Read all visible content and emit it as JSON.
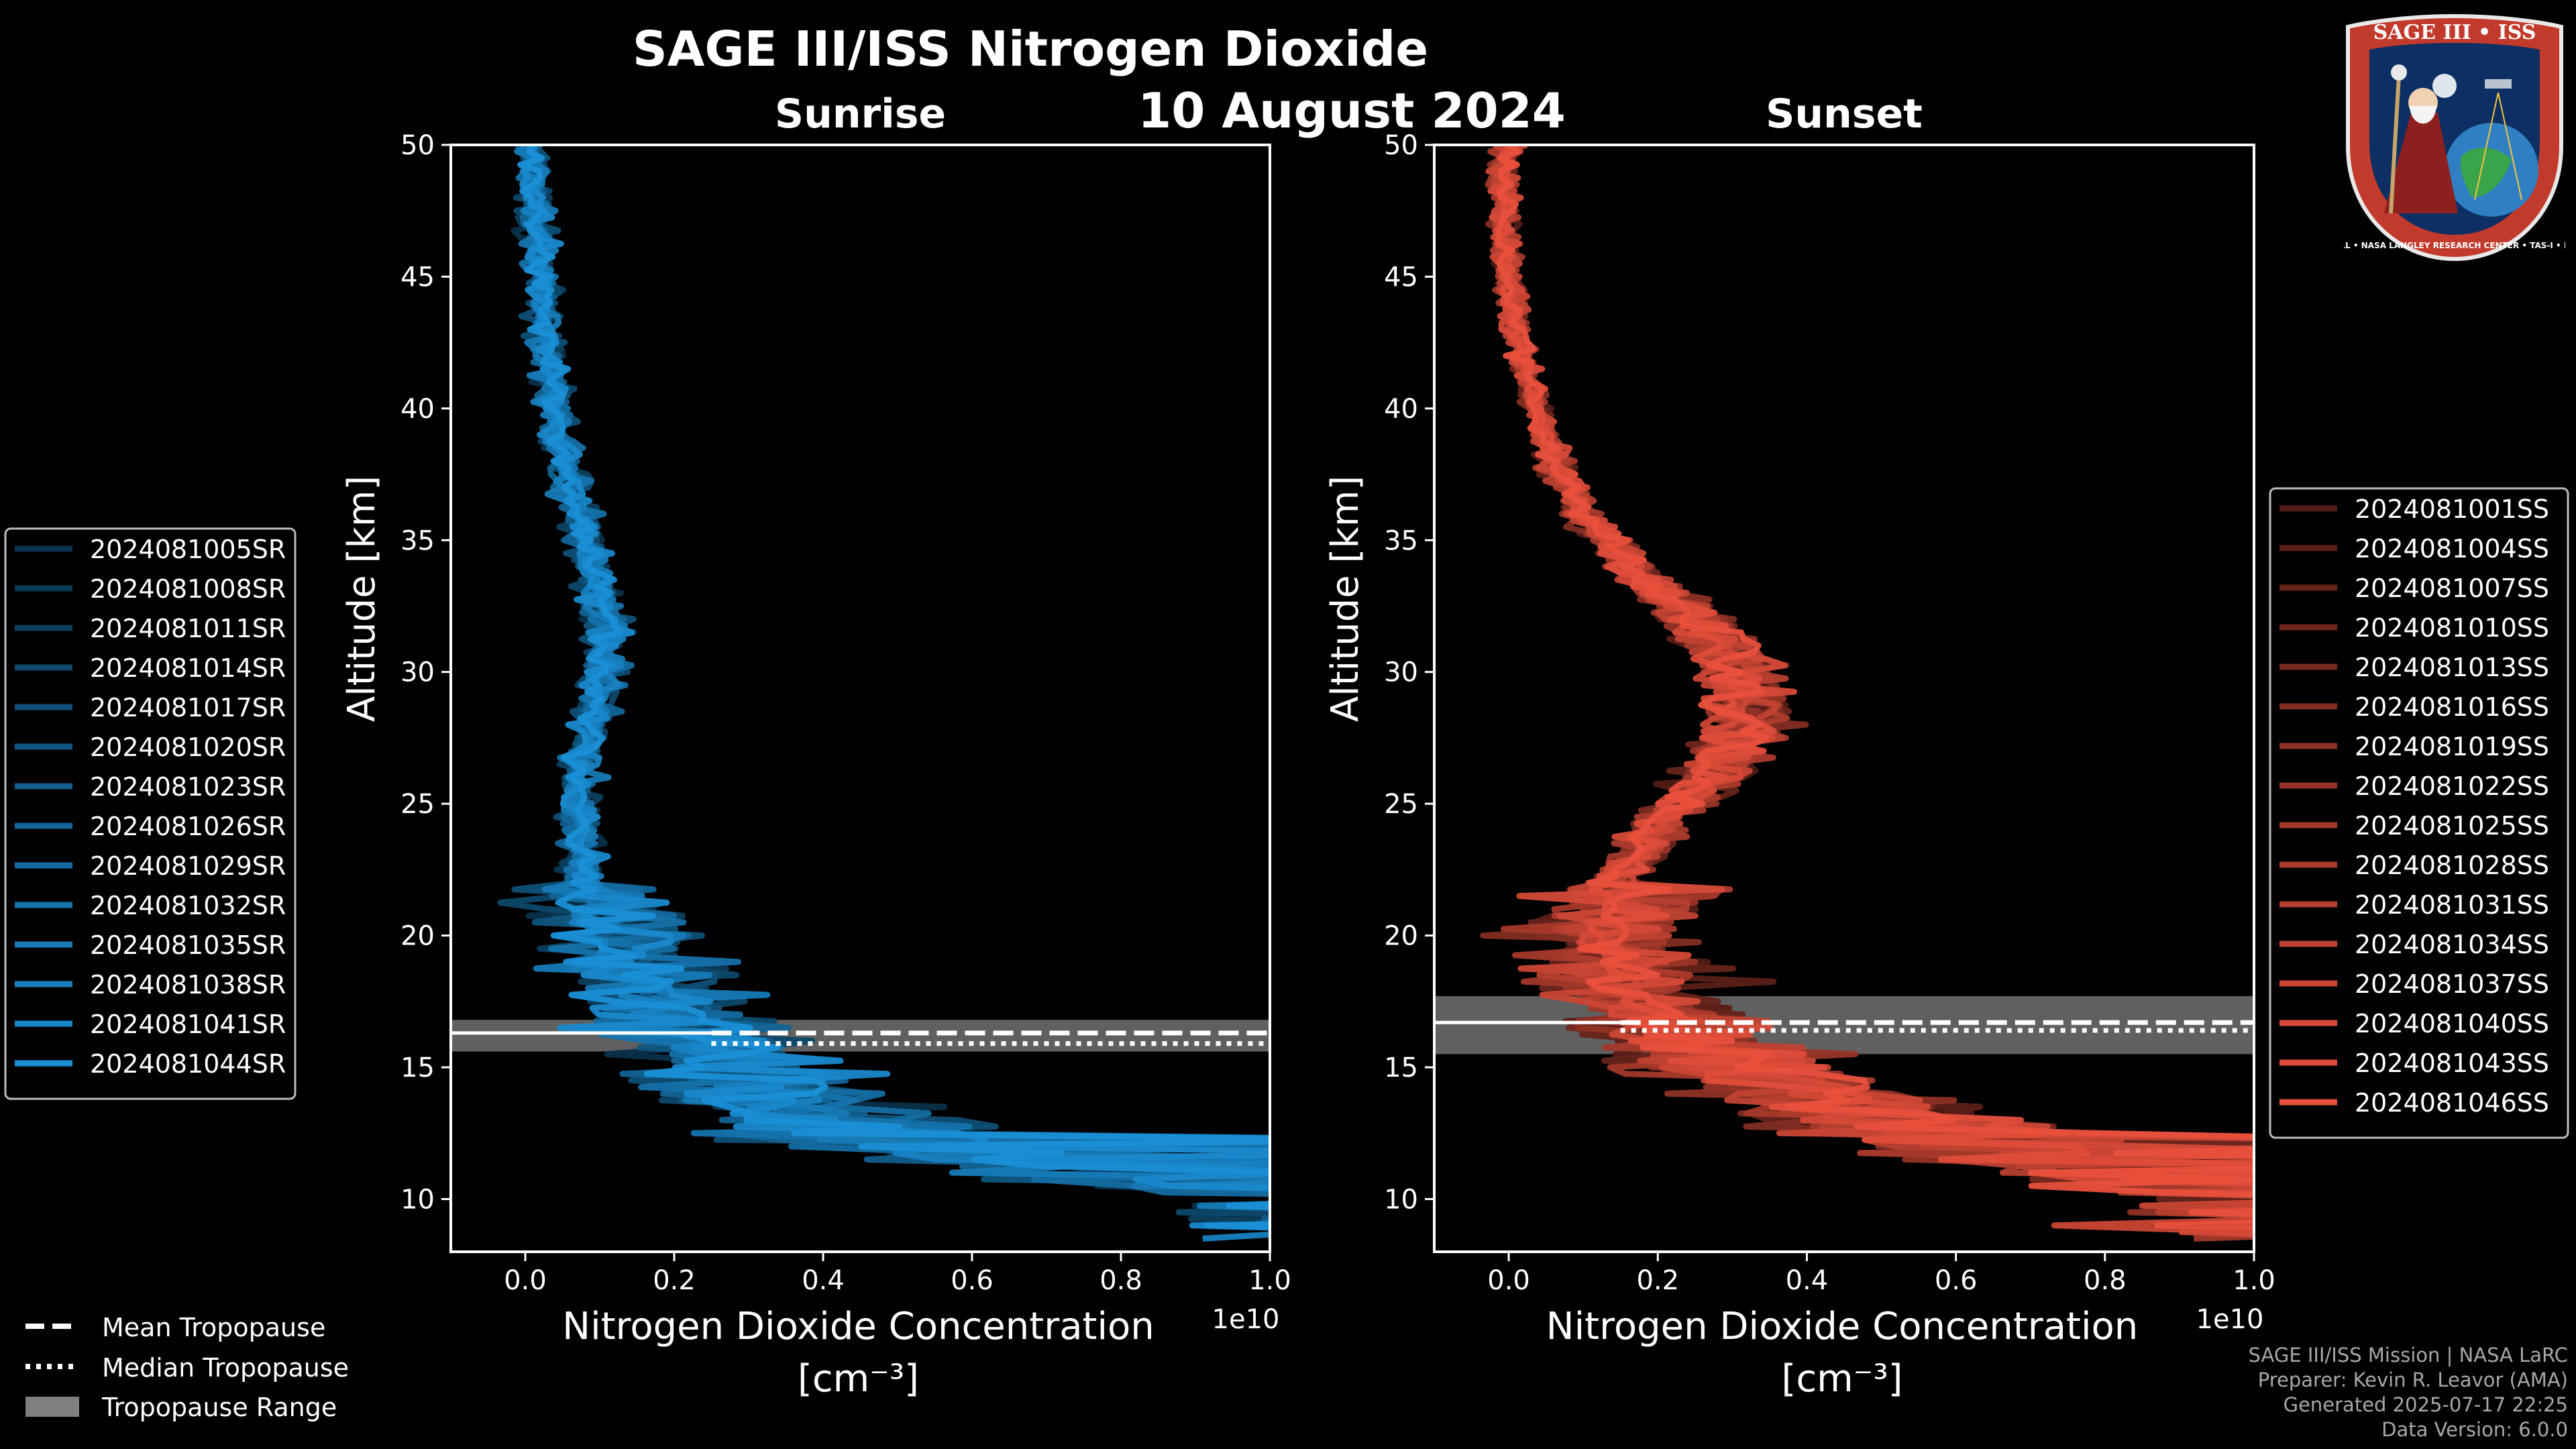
{
  "chart_data": {
    "title": "SAGE III/ISS Nitrogen Dioxide",
    "date": "10 August 2024",
    "panels": [
      {
        "type": "line",
        "subtitle": "Sunrise",
        "xlabel_line1": "Nitrogen Dioxide Concentration",
        "xlabel_line2": "[cm⁻³]",
        "ylabel": "Altitude [km]",
        "x_scale_label": "1e10",
        "xlim": [
          -0.1,
          1.0
        ],
        "ylim": [
          8,
          50
        ],
        "xticks": [
          0.0,
          0.2,
          0.4,
          0.6,
          0.8,
          1.0
        ],
        "xtick_labels": [
          "0.0",
          "0.2",
          "0.4",
          "0.6",
          "0.8",
          "1.0"
        ],
        "yticks": [
          10,
          15,
          20,
          25,
          30,
          35,
          40,
          45,
          50
        ],
        "mean_tropopause_km": 16.3,
        "median_tropopause_km": 15.9,
        "tropopause_range_km": [
          15.6,
          16.8
        ],
        "tropopause_line_x_start": 0.25,
        "legend_position": "left",
        "series_color": "#1a8fd6",
        "series": [
          {
            "name": "2024081005SR"
          },
          {
            "name": "2024081008SR"
          },
          {
            "name": "2024081011SR"
          },
          {
            "name": "2024081014SR"
          },
          {
            "name": "2024081017SR"
          },
          {
            "name": "2024081020SR"
          },
          {
            "name": "2024081023SR"
          },
          {
            "name": "2024081026SR"
          },
          {
            "name": "2024081029SR"
          },
          {
            "name": "2024081032SR"
          },
          {
            "name": "2024081035SR"
          },
          {
            "name": "2024081038SR"
          },
          {
            "name": "2024081041SR"
          },
          {
            "name": "2024081044SR"
          }
        ],
        "profile": {
          "alt": [
            10,
            12,
            14,
            16,
            18,
            20,
            22,
            24,
            26,
            28,
            30,
            32,
            34,
            36,
            38,
            40,
            42,
            44,
            46,
            48,
            50
          ],
          "x": [
            1.1,
            0.45,
            0.3,
            0.22,
            0.15,
            0.1,
            0.09,
            0.08,
            0.08,
            0.1,
            0.12,
            0.12,
            0.1,
            0.08,
            0.06,
            0.045,
            0.035,
            0.025,
            0.02,
            0.015,
            0.01
          ]
        }
      },
      {
        "type": "line",
        "subtitle": "Sunset",
        "xlabel_line1": "Nitrogen Dioxide Concentration",
        "xlabel_line2": "[cm⁻³]",
        "ylabel": "Altitude [km]",
        "x_scale_label": "1e10",
        "xlim": [
          -0.1,
          1.0
        ],
        "ylim": [
          8,
          50
        ],
        "xticks": [
          0.0,
          0.2,
          0.4,
          0.6,
          0.8,
          1.0
        ],
        "xtick_labels": [
          "0.0",
          "0.2",
          "0.4",
          "0.6",
          "0.8",
          "1.0"
        ],
        "yticks": [
          10,
          15,
          20,
          25,
          30,
          35,
          40,
          45,
          50
        ],
        "mean_tropopause_km": 16.7,
        "median_tropopause_km": 16.4,
        "tropopause_range_km": [
          15.5,
          17.7
        ],
        "tropopause_line_x_start": 0.15,
        "legend_position": "right",
        "series_color": "#e8503c",
        "series": [
          {
            "name": "2024081001SS"
          },
          {
            "name": "2024081004SS"
          },
          {
            "name": "2024081007SS"
          },
          {
            "name": "2024081010SS"
          },
          {
            "name": "2024081013SS"
          },
          {
            "name": "2024081016SS"
          },
          {
            "name": "2024081019SS"
          },
          {
            "name": "2024081022SS"
          },
          {
            "name": "2024081025SS"
          },
          {
            "name": "2024081028SS"
          },
          {
            "name": "2024081031SS"
          },
          {
            "name": "2024081034SS"
          },
          {
            "name": "2024081037SS"
          },
          {
            "name": "2024081040SS"
          },
          {
            "name": "2024081043SS"
          },
          {
            "name": "2024081046SS"
          }
        ],
        "profile": {
          "alt": [
            10,
            12,
            14,
            16,
            18,
            20,
            22,
            24,
            26,
            28,
            30,
            32,
            34,
            36,
            38,
            40,
            42,
            44,
            46,
            48,
            50
          ],
          "x": [
            1.1,
            0.6,
            0.35,
            0.22,
            0.14,
            0.12,
            0.16,
            0.22,
            0.3,
            0.36,
            0.35,
            0.28,
            0.18,
            0.11,
            0.07,
            0.04,
            0.02,
            0.005,
            -0.005,
            -0.01,
            0.0
          ]
        }
      }
    ],
    "legend_tropopause": {
      "mean": "Mean Tropopause",
      "median": "Median Tropopause",
      "range": "Tropopause Range"
    }
  },
  "logo": {
    "name": "SAGE III • ISS",
    "ring_text": "BALL • NASA LANGLEY RESEARCH CENTER • TAS-I • ESA"
  },
  "credits": {
    "line1": "SAGE III/ISS Mission | NASA LaRC",
    "line2": "Preparer: Kevin R. Leavor (AMA)",
    "line3": "Generated 2025-07-17 22:25",
    "line4": "Data Version: 6.0.0"
  }
}
